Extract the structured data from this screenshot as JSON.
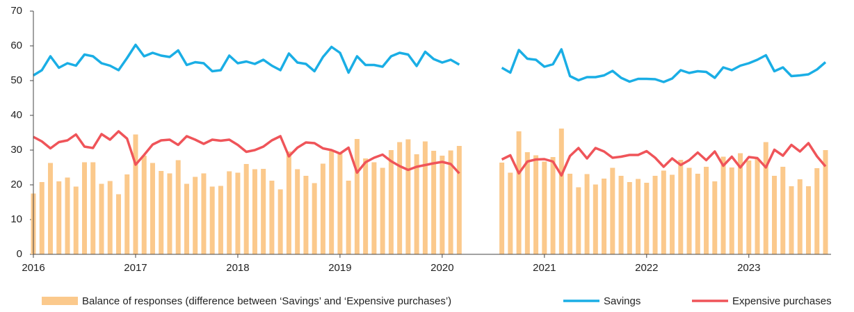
{
  "chart_data": {
    "type": "combo",
    "categories": [
      "2016",
      null,
      null,
      null,
      null,
      null,
      null,
      null,
      null,
      null,
      null,
      null,
      "2017",
      null,
      null,
      null,
      null,
      null,
      null,
      null,
      null,
      null,
      null,
      null,
      "2018",
      null,
      null,
      null,
      null,
      null,
      null,
      null,
      null,
      null,
      null,
      null,
      "2019",
      null,
      null,
      null,
      null,
      null,
      null,
      null,
      null,
      null,
      null,
      null,
      "2020",
      null,
      null,
      null,
      null,
      null,
      null,
      null,
      null,
      null,
      null,
      null,
      "2021",
      null,
      null,
      null,
      null,
      null,
      null,
      null,
      null,
      null,
      null,
      null,
      "2022",
      null,
      null,
      null,
      null,
      null,
      null,
      null,
      null,
      null,
      null,
      null,
      "2023",
      null,
      null,
      null,
      null,
      null,
      null,
      null,
      null,
      null
    ],
    "series": [
      {
        "name": "Balance of responses (difference between ‘Savings’ and ‘Expensive purchases’)",
        "type": "bar",
        "color": "#fbc98c",
        "values": [
          17.5,
          20.8,
          26.3,
          21,
          22.1,
          19.5,
          26.5,
          26.5,
          20.3,
          21.1,
          17.3,
          23,
          34.5,
          28.4,
          26.3,
          24,
          23.3,
          27.1,
          20.3,
          22.3,
          23.3,
          19.5,
          19.7,
          23.9,
          23.5,
          26,
          24.5,
          24.6,
          21.2,
          18.7,
          29.6,
          24.5,
          22.6,
          20.5,
          26.1,
          29.7,
          29,
          21.2,
          33.2,
          27.6,
          26.5,
          24.9,
          30,
          32.3,
          33.1,
          28.8,
          32.5,
          29.8,
          28.4,
          29.9,
          31.2,
          null,
          null,
          null,
          null,
          26.4,
          23.5,
          35.4,
          29.4,
          28.5,
          26.7,
          28,
          36.2,
          23.2,
          19.3,
          23.1,
          20.1,
          21.8,
          24.9,
          22.6,
          20.8,
          21.7,
          20.6,
          22.6,
          24.1,
          22.9,
          27.2,
          24.9,
          23.2,
          25.2,
          21,
          28.1,
          25,
          29.1,
          27,
          27.5,
          32.3,
          22.6,
          25.2,
          19.6,
          21.6,
          19.6,
          24.8,
          30
        ]
      },
      {
        "name": "Savings",
        "type": "line",
        "color": "#1aaee5",
        "values": [
          51.5,
          53,
          57,
          53.7,
          55,
          54.3,
          57.5,
          57,
          55,
          54.3,
          53,
          56.5,
          60.3,
          57,
          58,
          57.2,
          56.8,
          58.7,
          54.5,
          55.3,
          55,
          52.7,
          53,
          57.2,
          55,
          55.5,
          54.8,
          56,
          54.3,
          53,
          57.8,
          55.2,
          54.8,
          52.7,
          56.8,
          59.7,
          58,
          52.3,
          57,
          54.5,
          54.5,
          54,
          57,
          58,
          57.5,
          54.2,
          58.3,
          56.2,
          55.2,
          56,
          54.6,
          null,
          null,
          null,
          null,
          53.7,
          52.3,
          58.8,
          56.3,
          56,
          54,
          54.7,
          59,
          51.3,
          50.1,
          51,
          51,
          51.5,
          52.8,
          50.8,
          49.7,
          50.5,
          50.5,
          50.4,
          49.6,
          50.6,
          53,
          52.2,
          52.7,
          52.5,
          50.8,
          53.8,
          53,
          54.3,
          55,
          56,
          57.3,
          52.7,
          53.8,
          51.3,
          51.5,
          51.8,
          53.2,
          55.3
        ]
      },
      {
        "name": "Expensive purchases",
        "type": "line",
        "color": "#ef5459",
        "values": [
          33.8,
          32.5,
          30.5,
          32.3,
          32.8,
          34.5,
          31,
          30.6,
          34.6,
          33,
          35.4,
          33.3,
          25.8,
          28.6,
          31.6,
          32.8,
          33,
          31.5,
          34,
          33,
          31.8,
          33,
          32.7,
          33,
          31.5,
          29.5,
          30,
          31,
          32.8,
          34,
          28.2,
          30.7,
          32.2,
          32,
          30.5,
          30,
          29,
          30.7,
          23.5,
          26.5,
          27.8,
          28.7,
          26.8,
          25.4,
          24.3,
          25.2,
          25.7,
          26.2,
          26.6,
          26,
          23.3,
          null,
          null,
          null,
          null,
          27.3,
          28.5,
          23.3,
          26.7,
          27.3,
          27.4,
          26.7,
          22.7,
          28.3,
          30.6,
          27.6,
          30.6,
          29.6,
          27.8,
          28.1,
          28.6,
          28.6,
          29.7,
          27.8,
          25.2,
          27.6,
          25.7,
          27.1,
          29.3,
          27.1,
          29.6,
          25.5,
          28.1,
          25,
          28,
          27.7,
          25,
          30.1,
          28.4,
          31.5,
          29.6,
          32,
          28.2,
          25.3
        ]
      }
    ],
    "ylim": [
      0,
      70
    ],
    "yticks": [
      0,
      10,
      20,
      30,
      40,
      50,
      60,
      70
    ],
    "grid": false,
    "legend": "bottom"
  }
}
